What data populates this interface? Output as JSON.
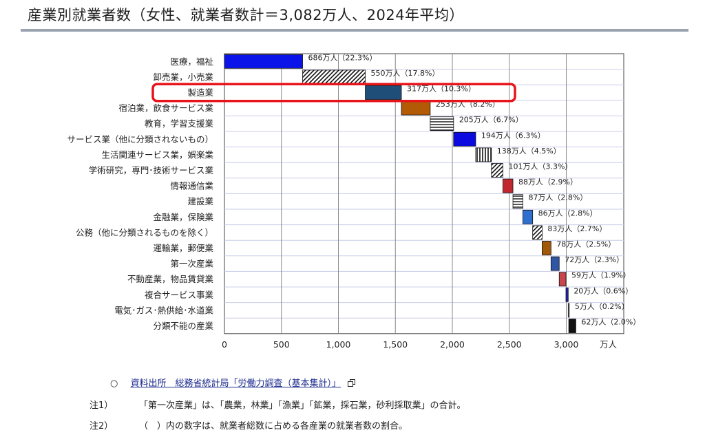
{
  "page": {
    "title": "産業別就業者数（女性、就業者数計＝3,082万人、2024年平均）",
    "source_bullet": "○",
    "source_text": "資料出所　総務省統計局「労働力調査（基本集計）」",
    "note1_label": "注1）",
    "note1_text": "「第一次産業」は、「農業，林業」「漁業」「鉱業，採石業，砂利採取業」の合計。",
    "note2_label": "注2）",
    "note2_text": "（　）内の数字は、就業者総数に占める各産業の就業者数の割合。"
  },
  "chart_data": {
    "type": "bar",
    "subtype": "waterfall-horizontal",
    "x_unit": "万人",
    "xlim": [
      0,
      3000
    ],
    "xticks": [
      "0",
      "500",
      "1,000",
      "1,500",
      "2,000",
      "2,500",
      "3,000"
    ],
    "xtick_values": [
      0,
      500,
      1000,
      1500,
      2000,
      2500,
      3000
    ],
    "grid": true,
    "highlight_category": "製造業",
    "highlight_color": "#e8141b",
    "categories": [
      "医療，福祉",
      "卸売業，小売業",
      "製造業",
      "宿泊業，飲食サービス業",
      "教育，学習支援業",
      "サービス業（他に分類されないもの）",
      "生活関連サービス業，娯楽業",
      "学術研究，専門･技術サービス業",
      "情報通信業",
      "建設業",
      "金融業，保険業",
      "公務（他に分類されるものを除く）",
      "運輸業，郵便業",
      "第一次産業",
      "不動産業，物品賃貸業",
      "複合サービス事業",
      "電気･ガス･熱供給･水道業",
      "分類不能の産業"
    ],
    "values": [
      686,
      550,
      317,
      253,
      205,
      194,
      138,
      101,
      88,
      87,
      86,
      83,
      78,
      72,
      59,
      20,
      5,
      62
    ],
    "labels": [
      "686万人（22.3%）",
      "550万人（17.8%）",
      "317万人（10.3%）",
      "253万人（8.2%）",
      "205万人（6.7%）",
      "194万人（6.3%）",
      "138万人（4.5%）",
      "101万人（3.3%）",
      "88万人（2.9%）",
      "87万人（2.8%）",
      "86万人（2.8%）",
      "83万人（2.7%）",
      "78万人（2.5%）",
      "72万人（2.3%）",
      "59万人（1.9%）",
      "20万人（0.6%）",
      "5万人（0.2%）",
      "62万人（2.0%）"
    ],
    "fills": [
      "solid",
      "diag",
      "solid",
      "solid",
      "hlines",
      "solid",
      "vlines",
      "diag",
      "solid",
      "hlines",
      "solid",
      "diag",
      "solid",
      "solid",
      "solid",
      "solid",
      "solid",
      "solid"
    ],
    "colors": [
      "#0a14e8",
      "#222222",
      "#1f4e79",
      "#b35a06",
      "#222222",
      "#0a0ae0",
      "#222222",
      "#222222",
      "#c1282d",
      "#222222",
      "#2f6fd0",
      "#222222",
      "#a0580a",
      "#2f55a5",
      "#c8454b",
      "#2222a8",
      "#888888",
      "#111111"
    ]
  }
}
